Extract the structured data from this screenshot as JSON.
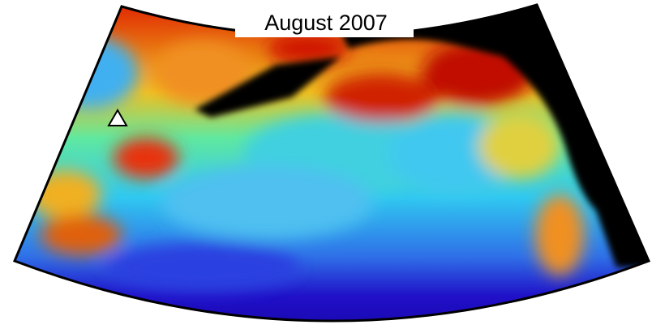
{
  "map": {
    "title": "August 2007"
  }
}
